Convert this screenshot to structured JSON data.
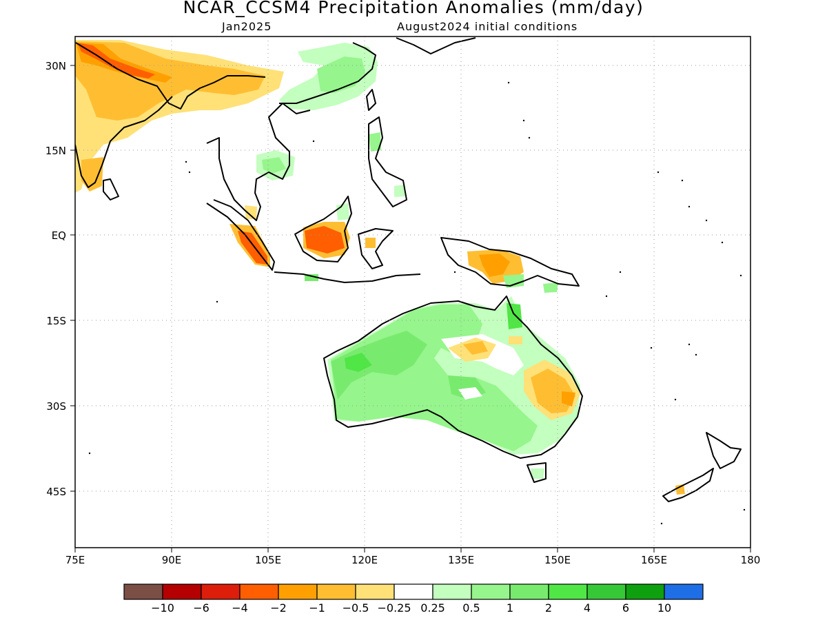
{
  "title": "NCAR_CCSM4 Precipitation Anomalies (mm/day)",
  "subtitle_left": "Jan2025",
  "subtitle_right": "August2024 initial conditions",
  "map": {
    "lon_range": [
      75,
      180
    ],
    "lat_range": [
      -55,
      35
    ],
    "lat_ticks": [
      {
        "label": "30N",
        "lat": 30
      },
      {
        "label": "15N",
        "lat": 15
      },
      {
        "label": "EQ",
        "lat": 0
      },
      {
        "label": "15S",
        "lat": -15
      },
      {
        "label": "30S",
        "lat": -30
      },
      {
        "label": "45S",
        "lat": -45
      }
    ],
    "lon_ticks": [
      {
        "label": "75E",
        "lon": 75
      },
      {
        "label": "90E",
        "lon": 90
      },
      {
        "label": "105E",
        "lon": 105
      },
      {
        "label": "120E",
        "lon": 120
      },
      {
        "label": "135E",
        "lon": 135
      },
      {
        "label": "150E",
        "lon": 150
      },
      {
        "label": "165E",
        "lon": 165
      },
      {
        "label": "180",
        "lon": 180
      }
    ],
    "grid": "dotted"
  },
  "colorbar": {
    "colors": [
      "#7b4f45",
      "#b40000",
      "#dc1e0a",
      "#ff5f00",
      "#ffa000",
      "#ffbe32",
      "#ffe178",
      "#ffffff",
      "#c3ffbe",
      "#96f58c",
      "#78eb6e",
      "#50e646",
      "#37c837",
      "#0fa00f",
      "#1e6ee6"
    ],
    "labels": [
      "-10",
      "-6",
      "-4",
      "-2",
      "-1",
      "-0.5",
      "-0.25",
      "0.25",
      "0.5",
      "1",
      "2",
      "4",
      "6",
      "10"
    ]
  },
  "colors": {
    "dry_strong": "#ff5f00",
    "dry_moderate": "#ffa000",
    "dry_light": "#ffbe32",
    "dry_weak": "#ffe178",
    "wet_weak": "#c3ffbe",
    "wet_light": "#96f58c",
    "wet_moderate": "#78eb6e",
    "wet_strong": "#50e646"
  }
}
